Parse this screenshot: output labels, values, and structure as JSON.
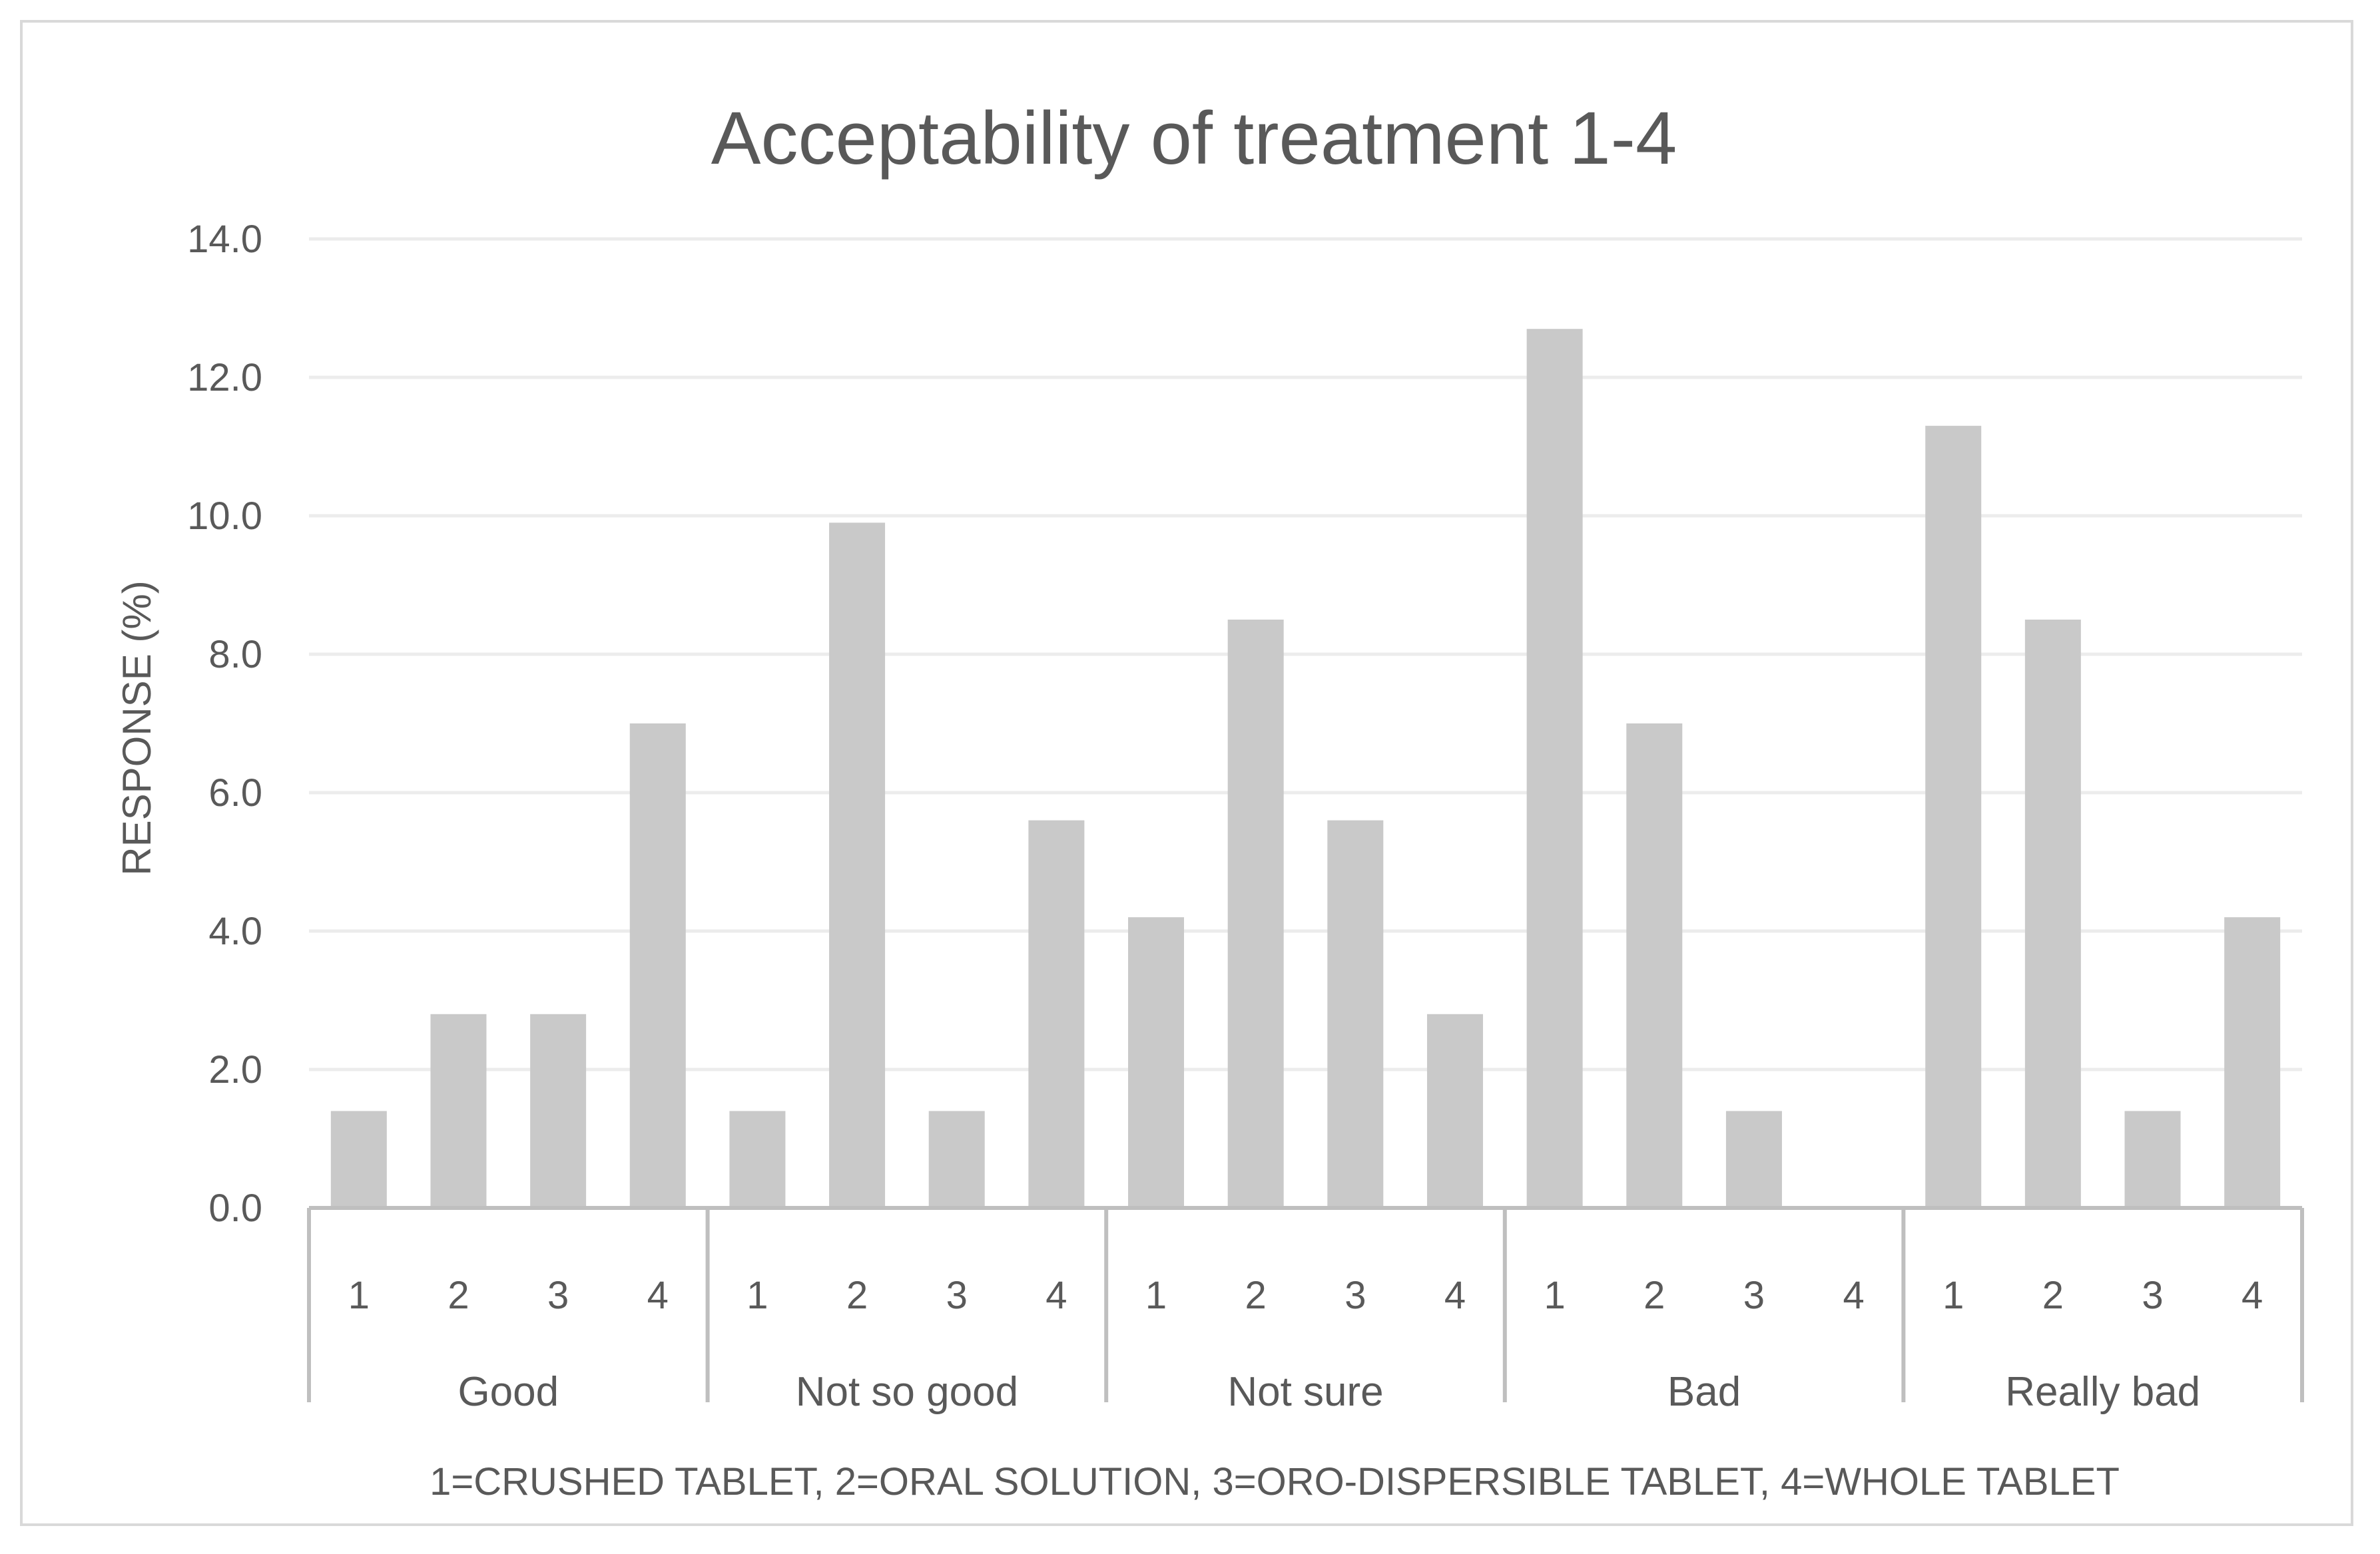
{
  "chart_data": {
    "type": "bar",
    "title": "Acceptability of treatment 1-4",
    "xlabel": "1=CRUSHED TABLET, 2=ORAL SOLUTION, 3=ORO-DISPERSIBLE TABLET, 4=WHOLE TABLET",
    "ylabel": "RESPONSE (%)",
    "ylim": [
      0,
      14
    ],
    "yticks": [
      "0.0",
      "2.0",
      "4.0",
      "6.0",
      "8.0",
      "10.0",
      "12.0",
      "14.0"
    ],
    "grid": true,
    "legend": "none",
    "bar_color": "#c9c9c9",
    "groups": [
      {
        "label": "Good",
        "subcategories": [
          "1",
          "2",
          "3",
          "4"
        ],
        "values": [
          1.4,
          2.8,
          2.8,
          7.0
        ]
      },
      {
        "label": "Not so good",
        "subcategories": [
          "1",
          "2",
          "3",
          "4"
        ],
        "values": [
          1.4,
          9.9,
          1.4,
          5.6
        ]
      },
      {
        "label": "Not sure",
        "subcategories": [
          "1",
          "2",
          "3",
          "4"
        ],
        "values": [
          4.2,
          8.5,
          5.6,
          2.8
        ]
      },
      {
        "label": "Bad",
        "subcategories": [
          "1",
          "2",
          "3",
          "4"
        ],
        "values": [
          12.7,
          7.0,
          1.4,
          0.0
        ]
      },
      {
        "label": "Really bad",
        "subcategories": [
          "1",
          "2",
          "3",
          "4"
        ],
        "values": [
          11.3,
          8.5,
          1.4,
          4.2
        ]
      }
    ]
  }
}
